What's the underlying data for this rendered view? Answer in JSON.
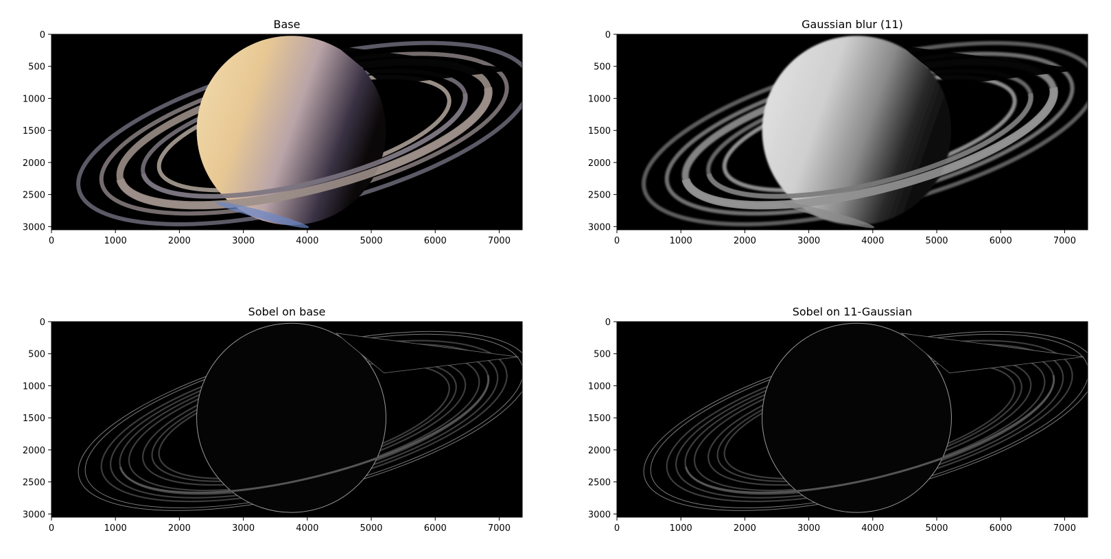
{
  "chart_data": [
    {
      "type": "image",
      "title": "Base",
      "x_ticks": [
        0,
        1000,
        2000,
        3000,
        4000,
        5000,
        6000,
        7000
      ],
      "y_ticks": [
        0,
        500,
        1000,
        1500,
        2000,
        2500,
        3000
      ],
      "xlim": [
        0,
        7360
      ],
      "ylim": [
        3050,
        0
      ],
      "render": "color"
    },
    {
      "type": "image",
      "title": "Gaussian blur (11)",
      "x_ticks": [
        0,
        1000,
        2000,
        3000,
        4000,
        5000,
        6000,
        7000
      ],
      "y_ticks": [
        0,
        500,
        1000,
        1500,
        2000,
        2500,
        3000
      ],
      "xlim": [
        0,
        7360
      ],
      "ylim": [
        3050,
        0
      ],
      "render": "gray"
    },
    {
      "type": "image",
      "title": "Sobel on base",
      "x_ticks": [
        0,
        1000,
        2000,
        3000,
        4000,
        5000,
        6000,
        7000
      ],
      "y_ticks": [
        0,
        500,
        1000,
        1500,
        2000,
        2500,
        3000
      ],
      "xlim": [
        0,
        7360
      ],
      "ylim": [
        3050,
        0
      ],
      "render": "edges"
    },
    {
      "type": "image",
      "title": "Sobel on 11-Gaussian",
      "x_ticks": [
        0,
        1000,
        2000,
        3000,
        4000,
        5000,
        6000,
        7000
      ],
      "y_ticks": [
        0,
        500,
        1000,
        1500,
        2000,
        2500,
        3000
      ],
      "xlim": [
        0,
        7360
      ],
      "ylim": [
        3050,
        0
      ],
      "render": "edges"
    }
  ]
}
